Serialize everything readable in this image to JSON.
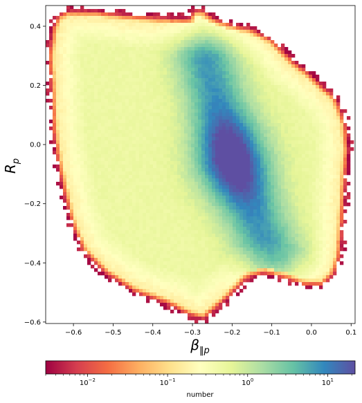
{
  "chart_data": {
    "type": "heatmap",
    "title": "",
    "xlabel": "β‖p",
    "ylabel": "Rp",
    "xlim": [
      -0.67,
      0.11
    ],
    "ylim": [
      -0.605,
      0.47
    ],
    "xticks": [
      -0.6,
      -0.5,
      -0.4,
      -0.3,
      -0.2,
      -0.1,
      0.0,
      0.1
    ],
    "xtick_labels": [
      "−0.6",
      "−0.5",
      "−0.4",
      "−0.3",
      "−0.2",
      "−0.1",
      "0.0",
      "0.1"
    ],
    "yticks": [
      0.4,
      0.2,
      0.0,
      -0.2,
      -0.4,
      -0.6
    ],
    "ytick_labels": [
      "0.4",
      "0.2",
      "0.0",
      "−0.2",
      "−0.4",
      "−0.6"
    ],
    "grid": false,
    "colormap": "Spectral",
    "colors": [
      "#9e0142",
      "#d53e4f",
      "#f46d43",
      "#fdae61",
      "#fee08b",
      "#ffffbf",
      "#e6f598",
      "#abdda4",
      "#66c2a5",
      "#3288bd",
      "#5e4fa2"
    ],
    "colorbar": {
      "orientation": "horizontal",
      "placement": "bottom",
      "scale": "log",
      "range": [
        0.003,
        22
      ],
      "ticks": [
        0.01,
        0.1,
        1,
        10
      ],
      "tick_labels": [
        "10",
        "10",
        "10",
        "10"
      ],
      "tick_exponents": [
        "−2",
        "−1",
        "0",
        "1"
      ],
      "label": "number"
    },
    "outline": [
      [
        -0.655,
        0.395
      ],
      [
        -0.64,
        0.44
      ],
      [
        -0.615,
        0.455
      ],
      [
        -0.55,
        0.455
      ],
      [
        -0.45,
        0.44
      ],
      [
        -0.35,
        0.43
      ],
      [
        -0.31,
        0.43
      ],
      [
        -0.3,
        0.455
      ],
      [
        -0.275,
        0.46
      ],
      [
        -0.245,
        0.43
      ],
      [
        -0.2,
        0.41
      ],
      [
        -0.15,
        0.395
      ],
      [
        -0.1,
        0.36
      ],
      [
        -0.07,
        0.32
      ],
      [
        -0.04,
        0.28
      ],
      [
        -0.01,
        0.25
      ],
      [
        0.03,
        0.2
      ],
      [
        0.065,
        0.16
      ],
      [
        0.09,
        0.07
      ],
      [
        0.095,
        -0.02
      ],
      [
        0.09,
        -0.1
      ],
      [
        0.085,
        -0.2
      ],
      [
        0.08,
        -0.3
      ],
      [
        0.075,
        -0.38
      ],
      [
        0.06,
        -0.44
      ],
      [
        0.03,
        -0.48
      ],
      [
        -0.02,
        -0.48
      ],
      [
        -0.06,
        -0.46
      ],
      [
        -0.12,
        -0.44
      ],
      [
        -0.16,
        -0.455
      ],
      [
        -0.2,
        -0.51
      ],
      [
        -0.24,
        -0.56
      ],
      [
        -0.27,
        -0.595
      ],
      [
        -0.31,
        -0.58
      ],
      [
        -0.36,
        -0.545
      ],
      [
        -0.45,
        -0.5
      ],
      [
        -0.52,
        -0.44
      ],
      [
        -0.58,
        -0.36
      ],
      [
        -0.61,
        -0.26
      ],
      [
        -0.63,
        -0.15
      ],
      [
        -0.645,
        -0.05
      ],
      [
        -0.655,
        0.05
      ],
      [
        -0.66,
        0.2
      ],
      [
        -0.665,
        0.3
      ]
    ],
    "peak_region": {
      "center": [
        -0.2,
        -0.05
      ],
      "max_count": 22,
      "ridge": [
        [
          -0.265,
          0.28
        ],
        [
          -0.2,
          -0.05
        ],
        [
          -0.1,
          -0.38
        ]
      ]
    }
  }
}
